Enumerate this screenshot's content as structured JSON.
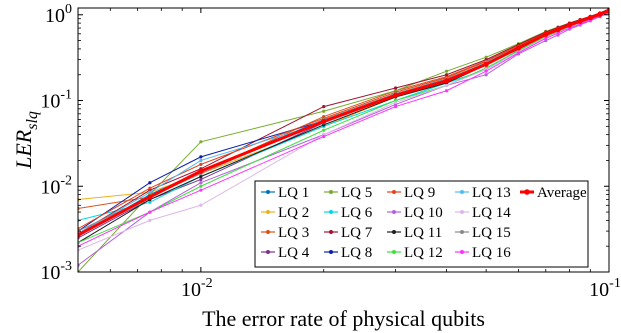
{
  "chart_data": {
    "type": "line",
    "x_scale": "log",
    "y_scale": "log",
    "xlim": [
      0.005,
      0.1
    ],
    "ylim": [
      0.001,
      1.2
    ],
    "xlabel": "The error rate of physical qubits",
    "ylabel_main": "LER",
    "ylabel_sub": "slq",
    "x_ticks": [
      {
        "value": 0.01,
        "base": "10",
        "exp": "-2"
      },
      {
        "value": 0.1,
        "base": "10",
        "exp": "-1"
      }
    ],
    "y_ticks": [
      {
        "value": 0.001,
        "base": "10",
        "exp": "-3"
      },
      {
        "value": 0.01,
        "base": "10",
        "exp": "-2"
      },
      {
        "value": 0.1,
        "base": "10",
        "exp": "-1"
      },
      {
        "value": 1,
        "base": "10",
        "exp": "0"
      }
    ],
    "grid": false,
    "legend_position": "bottom-right",
    "x": [
      0.005,
      0.0075,
      0.01,
      0.02,
      0.03,
      0.04,
      0.05,
      0.06,
      0.07,
      0.075,
      0.08,
      0.085,
      0.09,
      0.095,
      0.1
    ],
    "series": [
      {
        "name": "LQ 1",
        "color": "#0072BD",
        "values": [
          0.0026,
          0.008,
          0.015,
          0.06,
          0.12,
          0.17,
          0.27,
          0.42,
          0.6,
          0.68,
          0.77,
          0.85,
          0.93,
          1.02,
          1.12
        ]
      },
      {
        "name": "LQ 2",
        "color": "#EDB120",
        "values": [
          0.007,
          0.0085,
          0.014,
          0.05,
          0.11,
          0.16,
          0.26,
          0.4,
          0.58,
          0.66,
          0.75,
          0.83,
          0.92,
          1.01,
          1.1
        ]
      },
      {
        "name": "LQ 3",
        "color": "#D95319",
        "values": [
          0.0055,
          0.0075,
          0.0145,
          0.065,
          0.13,
          0.19,
          0.29,
          0.44,
          0.62,
          0.7,
          0.79,
          0.87,
          0.95,
          1.04,
          1.15
        ]
      },
      {
        "name": "LQ 4",
        "color": "#7E2F8E",
        "values": [
          0.0025,
          0.007,
          0.012,
          0.055,
          0.115,
          0.165,
          0.265,
          0.41,
          0.59,
          0.67,
          0.76,
          0.84,
          0.925,
          1.015,
          1.11
        ]
      },
      {
        "name": "LQ 5",
        "color": "#77AC30",
        "values": [
          0.001,
          0.008,
          0.033,
          0.075,
          0.13,
          0.22,
          0.32,
          0.46,
          0.64,
          0.72,
          0.8,
          0.88,
          0.96,
          1.05,
          1.16
        ]
      },
      {
        "name": "LQ 6",
        "color": "#00D8E8",
        "values": [
          0.004,
          0.0065,
          0.013,
          0.05,
          0.1,
          0.16,
          0.23,
          0.39,
          0.56,
          0.64,
          0.73,
          0.81,
          0.9,
          0.99,
          1.09
        ]
      },
      {
        "name": "LQ 7",
        "color": "#A2142F",
        "values": [
          0.0028,
          0.009,
          0.016,
          0.085,
          0.14,
          0.2,
          0.3,
          0.45,
          0.63,
          0.71,
          0.8,
          0.88,
          0.96,
          1.05,
          1.17
        ]
      },
      {
        "name": "LQ 8",
        "color": "#0A1FA8",
        "values": [
          0.003,
          0.011,
          0.022,
          0.058,
          0.12,
          0.175,
          0.275,
          0.42,
          0.6,
          0.68,
          0.77,
          0.85,
          0.935,
          1.025,
          1.13
        ]
      },
      {
        "name": "LQ 9",
        "color": "#E8431F",
        "values": [
          0.0032,
          0.0095,
          0.018,
          0.062,
          0.125,
          0.185,
          0.285,
          0.43,
          0.61,
          0.69,
          0.78,
          0.86,
          0.945,
          1.035,
          1.14
        ]
      },
      {
        "name": "LQ 10",
        "color": "#B560E0",
        "values": [
          0.0012,
          0.005,
          0.011,
          0.04,
          0.09,
          0.15,
          0.2,
          0.35,
          0.5,
          0.58,
          0.68,
          0.76,
          0.85,
          0.95,
          1.05
        ]
      },
      {
        "name": "LQ 11",
        "color": "#202020",
        "values": [
          0.0022,
          0.007,
          0.013,
          0.052,
          0.11,
          0.16,
          0.26,
          0.4,
          0.58,
          0.66,
          0.75,
          0.83,
          0.915,
          1.005,
          1.1
        ]
      },
      {
        "name": "LQ 12",
        "color": "#3FE03F",
        "values": [
          0.0022,
          0.005,
          0.01,
          0.045,
          0.1,
          0.15,
          0.24,
          0.38,
          0.56,
          0.64,
          0.73,
          0.81,
          0.9,
          0.99,
          1.08
        ]
      },
      {
        "name": "LQ 13",
        "color": "#4DBEEE",
        "values": [
          0.0028,
          0.0085,
          0.02,
          0.055,
          0.115,
          0.17,
          0.28,
          0.42,
          0.6,
          0.68,
          0.77,
          0.85,
          0.93,
          1.02,
          1.12
        ]
      },
      {
        "name": "LQ 14",
        "color": "#DDB8E8",
        "values": [
          0.0018,
          0.004,
          0.006,
          0.04,
          0.095,
          0.15,
          0.23,
          0.37,
          0.54,
          0.62,
          0.71,
          0.79,
          0.88,
          0.97,
          1.07
        ]
      },
      {
        "name": "LQ 15",
        "color": "#8A8A8A",
        "values": [
          0.003,
          0.0075,
          0.014,
          0.06,
          0.12,
          0.18,
          0.27,
          0.42,
          0.6,
          0.68,
          0.77,
          0.85,
          0.935,
          1.025,
          1.13
        ]
      },
      {
        "name": "LQ 16",
        "color": "#FF33FF",
        "values": [
          0.002,
          0.005,
          0.009,
          0.038,
          0.085,
          0.13,
          0.22,
          0.36,
          0.53,
          0.61,
          0.7,
          0.78,
          0.87,
          0.96,
          1.06
        ]
      },
      {
        "name": "Average",
        "color": "#FF0000",
        "values": [
          0.0027,
          0.0075,
          0.015,
          0.057,
          0.115,
          0.17,
          0.265,
          0.41,
          0.59,
          0.67,
          0.76,
          0.84,
          0.925,
          1.015,
          1.115
        ],
        "bold": true
      }
    ],
    "legend_columns": [
      [
        "LQ 1",
        "LQ 2",
        "LQ 3",
        "LQ 4"
      ],
      [
        "LQ 5",
        "LQ 6",
        "LQ 7",
        "LQ 8"
      ],
      [
        "LQ 9",
        "LQ 10",
        "LQ 11",
        "LQ 12"
      ],
      [
        "LQ 13",
        "LQ 14",
        "LQ 15",
        "LQ 16"
      ],
      [
        "Average"
      ]
    ]
  }
}
